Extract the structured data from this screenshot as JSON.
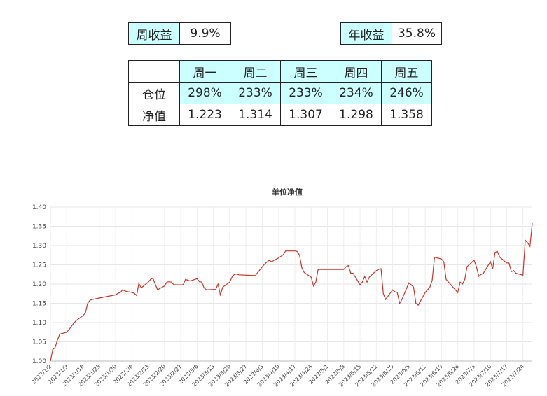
{
  "summary": {
    "weekly_label": "周收益",
    "weekly_value": "9.9%",
    "annual_label": "年收益",
    "annual_value": "35.8%"
  },
  "daily_table": {
    "corner": "",
    "days": [
      "周一",
      "周二",
      "周三",
      "周四",
      "周五"
    ],
    "rows": [
      {
        "label": "仓位",
        "values": [
          "298%",
          "233%",
          "233%",
          "234%",
          "246%"
        ]
      },
      {
        "label": "净值",
        "values": [
          "1.223",
          "1.314",
          "1.307",
          "1.298",
          "1.358"
        ]
      }
    ]
  },
  "chart_data": {
    "type": "line",
    "title": "单位净值",
    "xlabel": "",
    "ylabel": "",
    "ylim": [
      1.0,
      1.4
    ],
    "y_ticks": [
      "1.00",
      "1.05",
      "1.10",
      "1.15",
      "1.20",
      "1.25",
      "1.30",
      "1.35",
      "1.40"
    ],
    "grid": true,
    "legend": "none",
    "line_color": "#c0392b",
    "x_ticks": [
      "2023/1/2",
      "2023/1/9",
      "2023/1/16",
      "2023/1/23",
      "2023/1/30",
      "2023/2/6",
      "2023/2/13",
      "2023/2/20",
      "2023/2/27",
      "2023/3/6",
      "2023/3/13",
      "2023/3/20",
      "2023/3/27",
      "2023/4/3",
      "2023/4/10",
      "2023/4/17",
      "2023/4/24",
      "2023/5/1",
      "2023/5/8",
      "2023/5/15",
      "2023/5/22",
      "2023/5/29",
      "2023/6/5",
      "2023/6/12",
      "2023/6/19",
      "2023/6/26",
      "2023/7/3",
      "2023/7/10",
      "2023/7/17",
      "2023/7/24"
    ],
    "series": [
      {
        "points": [
          [
            "2023/1/2",
            1.0
          ],
          [
            "2023/1/3",
            1.03
          ],
          [
            "2023/1/4",
            1.035
          ],
          [
            "2023/1/5",
            1.055
          ],
          [
            "2023/1/6",
            1.07
          ],
          [
            "2023/1/9",
            1.075
          ],
          [
            "2023/1/10",
            1.082
          ],
          [
            "2023/1/11",
            1.09
          ],
          [
            "2023/1/12",
            1.098
          ],
          [
            "2023/1/13",
            1.105
          ],
          [
            "2023/1/16",
            1.118
          ],
          [
            "2023/1/17",
            1.125
          ],
          [
            "2023/1/18",
            1.15
          ],
          [
            "2023/1/19",
            1.158
          ],
          [
            "2023/1/20",
            1.16
          ],
          [
            "2023/1/30",
            1.172
          ],
          [
            "2023/1/31",
            1.176
          ],
          [
            "2023/2/1",
            1.178
          ],
          [
            "2023/2/2",
            1.185
          ],
          [
            "2023/2/3",
            1.182
          ],
          [
            "2023/2/6",
            1.178
          ],
          [
            "2023/2/7",
            1.176
          ],
          [
            "2023/2/8",
            1.17
          ],
          [
            "2023/2/9",
            1.202
          ],
          [
            "2023/2/10",
            1.19
          ],
          [
            "2023/2/13",
            1.205
          ],
          [
            "2023/2/14",
            1.212
          ],
          [
            "2023/2/15",
            1.215
          ],
          [
            "2023/2/16",
            1.2
          ],
          [
            "2023/2/17",
            1.185
          ],
          [
            "2023/2/20",
            1.195
          ],
          [
            "2023/2/21",
            1.205
          ],
          [
            "2023/2/22",
            1.206
          ],
          [
            "2023/2/23",
            1.205
          ],
          [
            "2023/2/24",
            1.198
          ],
          [
            "2023/2/27",
            1.198
          ],
          [
            "2023/2/28",
            1.198
          ],
          [
            "2023/3/1",
            1.212
          ],
          [
            "2023/3/2",
            1.21
          ],
          [
            "2023/3/3",
            1.208
          ],
          [
            "2023/3/6",
            1.214
          ],
          [
            "2023/3/7",
            1.206
          ],
          [
            "2023/3/8",
            1.205
          ],
          [
            "2023/3/9",
            1.19
          ],
          [
            "2023/3/10",
            1.185
          ],
          [
            "2023/3/13",
            1.186
          ],
          [
            "2023/3/14",
            1.186
          ],
          [
            "2023/3/15",
            1.2
          ],
          [
            "2023/3/16",
            1.172
          ],
          [
            "2023/3/17",
            1.192
          ],
          [
            "2023/3/20",
            1.205
          ],
          [
            "2023/3/21",
            1.218
          ],
          [
            "2023/3/22",
            1.225
          ],
          [
            "2023/3/23",
            1.226
          ],
          [
            "2023/3/24",
            1.224
          ],
          [
            "2023/3/31",
            1.222
          ],
          [
            "2023/4/3",
            1.245
          ],
          [
            "2023/4/4",
            1.252
          ],
          [
            "2023/4/6",
            1.262
          ],
          [
            "2023/4/7",
            1.258
          ],
          [
            "2023/4/10",
            1.268
          ],
          [
            "2023/4/11",
            1.272
          ],
          [
            "2023/4/12",
            1.276
          ],
          [
            "2023/4/13",
            1.286
          ],
          [
            "2023/4/14",
            1.286
          ],
          [
            "2023/4/17",
            1.286
          ],
          [
            "2023/4/18",
            1.285
          ],
          [
            "2023/4/19",
            1.275
          ],
          [
            "2023/4/20",
            1.242
          ],
          [
            "2023/4/21",
            1.23
          ],
          [
            "2023/4/24",
            1.218
          ],
          [
            "2023/4/25",
            1.195
          ],
          [
            "2023/4/26",
            1.205
          ],
          [
            "2023/4/27",
            1.238
          ],
          [
            "2023/4/28",
            1.238
          ],
          [
            "2023/5/8",
            1.238
          ],
          [
            "2023/5/9",
            1.245
          ],
          [
            "2023/5/10",
            1.248
          ],
          [
            "2023/5/11",
            1.228
          ],
          [
            "2023/5/12",
            1.228
          ],
          [
            "2023/5/15",
            1.198
          ],
          [
            "2023/5/16",
            1.205
          ],
          [
            "2023/5/17",
            1.22
          ],
          [
            "2023/5/18",
            1.205
          ],
          [
            "2023/5/19",
            1.218
          ],
          [
            "2023/5/22",
            1.235
          ],
          [
            "2023/5/23",
            1.238
          ],
          [
            "2023/5/24",
            1.24
          ],
          [
            "2023/5/25",
            1.175
          ],
          [
            "2023/5/26",
            1.16
          ],
          [
            "2023/5/29",
            1.185
          ],
          [
            "2023/5/30",
            1.18
          ],
          [
            "2023/5/31",
            1.178
          ],
          [
            "2023/6/1",
            1.15
          ],
          [
            "2023/6/2",
            1.16
          ],
          [
            "2023/6/5",
            1.203
          ],
          [
            "2023/6/6",
            1.198
          ],
          [
            "2023/6/7",
            1.192
          ],
          [
            "2023/6/8",
            1.15
          ],
          [
            "2023/6/9",
            1.145
          ],
          [
            "2023/6/12",
            1.178
          ],
          [
            "2023/6/13",
            1.185
          ],
          [
            "2023/6/14",
            1.192
          ],
          [
            "2023/6/15",
            1.21
          ],
          [
            "2023/6/16",
            1.27
          ],
          [
            "2023/6/19",
            1.265
          ],
          [
            "2023/6/20",
            1.258
          ],
          [
            "2023/6/21",
            1.212
          ],
          [
            "2023/6/26",
            1.178
          ],
          [
            "2023/6/27",
            1.205
          ],
          [
            "2023/6/28",
            1.2
          ],
          [
            "2023/6/29",
            1.212
          ],
          [
            "2023/6/30",
            1.245
          ],
          [
            "2023/7/3",
            1.262
          ],
          [
            "2023/7/4",
            1.245
          ],
          [
            "2023/7/5",
            1.22
          ],
          [
            "2023/7/6",
            1.225
          ],
          [
            "2023/7/7",
            1.228
          ],
          [
            "2023/7/10",
            1.258
          ],
          [
            "2023/7/11",
            1.24
          ],
          [
            "2023/7/12",
            1.282
          ],
          [
            "2023/7/13",
            1.285
          ],
          [
            "2023/7/14",
            1.27
          ],
          [
            "2023/7/17",
            1.255
          ],
          [
            "2023/7/18",
            1.255
          ],
          [
            "2023/7/19",
            1.232
          ],
          [
            "2023/7/20",
            1.235
          ],
          [
            "2023/7/21",
            1.228
          ],
          [
            "2023/7/24",
            1.223
          ],
          [
            "2023/7/25",
            1.314
          ],
          [
            "2023/7/26",
            1.307
          ],
          [
            "2023/7/27",
            1.298
          ],
          [
            "2023/7/28",
            1.358
          ]
        ]
      }
    ]
  }
}
